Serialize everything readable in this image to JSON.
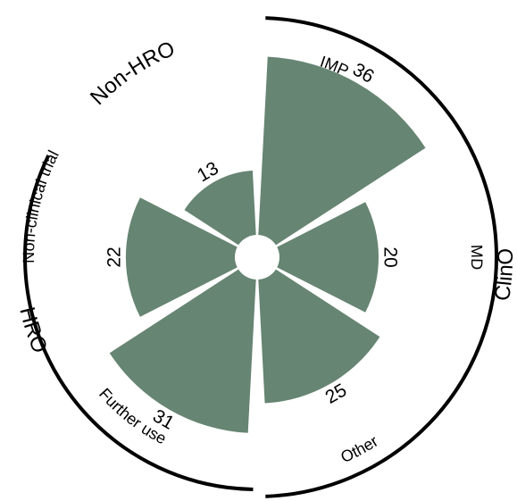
{
  "chart_data": {
    "type": "polar-bar",
    "categories": [
      "IMP",
      "MD",
      "Other",
      "Further use",
      "Non-clinical trial",
      "Non-HRO"
    ],
    "values": [
      36,
      20,
      25,
      31,
      22,
      13
    ],
    "value_labels": [
      "36",
      "20",
      "25",
      "31",
      "22",
      "13"
    ],
    "groups": [
      {
        "label": "ClinO",
        "categories": [
          "IMP",
          "MD",
          "Other"
        ]
      },
      {
        "label": "HRO",
        "categories": [
          "Further use",
          "Non-clinical trial"
        ]
      },
      {
        "label": "Non-HRO",
        "categories": [
          "Non-HRO"
        ]
      }
    ],
    "category_labels_shown": [
      "IMP",
      "MD",
      "Other",
      "Further use",
      "Non-clinical trial"
    ],
    "grid": false,
    "legend": "none",
    "colors": {
      "bar": "#668572",
      "arc": "#000000"
    }
  }
}
